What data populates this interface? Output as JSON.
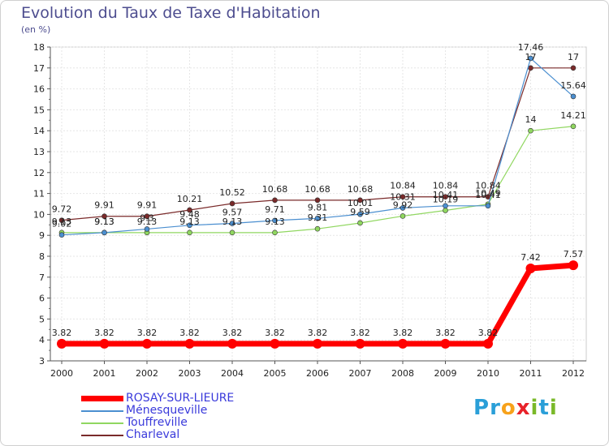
{
  "header": {
    "title": "Evolution du Taux de Taxe d'Habitation",
    "subtitle": "(en %)"
  },
  "logo": {
    "letters": [
      "P",
      "r",
      "o",
      "x",
      "i",
      "t",
      "i"
    ],
    "colors": [
      "#2a9fd8",
      "#2a9fd8",
      "#f7a21b",
      "#e8222a",
      "#7ab929",
      "#2a9fd8",
      "#7ab929"
    ]
  },
  "chart_data": {
    "type": "line",
    "title": "Evolution du Taux de Taxe d'Habitation",
    "ylabel": "(en %)",
    "xlabel": "",
    "x": [
      "2000",
      "2001",
      "2002",
      "2003",
      "2004",
      "2005",
      "2006",
      "2007",
      "2008",
      "2009",
      "2010",
      "2011",
      "2012"
    ],
    "ylim": [
      3,
      18
    ],
    "yticks": [
      "3",
      "4",
      "5",
      "6",
      "7",
      "8",
      "9",
      "10",
      "11",
      "12",
      "13",
      "14",
      "15",
      "16",
      "17",
      "18"
    ],
    "grid": true,
    "legend_position": "bottom-left",
    "series": [
      {
        "name": "ROSAY-SUR-LIEURE",
        "color": "#ff0000",
        "values": [
          3.82,
          3.82,
          3.82,
          3.82,
          3.82,
          3.82,
          3.82,
          3.82,
          3.82,
          3.82,
          3.82,
          7.42,
          7.57
        ],
        "labels": [
          "3.82",
          "3.82",
          "3.82",
          "3.82",
          "3.82",
          "3.82",
          "3.82",
          "3.82",
          "3.82",
          "3.82",
          "3.82",
          "7.42",
          "7.57"
        ]
      },
      {
        "name": "Ménesqueville",
        "color": "#4b8fd0",
        "values": [
          9.02,
          9.13,
          9.3,
          9.48,
          9.57,
          9.71,
          9.81,
          10.01,
          10.31,
          10.41,
          10.41,
          17.46,
          15.64
        ],
        "labels": [
          "9.02",
          "9.13",
          "9.3",
          "9.48",
          "9.57",
          "9.71",
          "9.81",
          "10.01",
          "10.31",
          "10.41",
          "10.41",
          "17.46",
          "15.64"
        ]
      },
      {
        "name": "Touffreville",
        "color": "#90d760",
        "values": [
          9.13,
          9.13,
          9.13,
          9.13,
          9.13,
          9.13,
          9.31,
          9.59,
          9.92,
          10.19,
          10.49,
          14,
          14.21
        ],
        "labels": [
          "9.13",
          "9.13",
          "9.13",
          "9.13",
          "9.13",
          "9.13",
          "9.31",
          "9.59",
          "9.92",
          "10.19",
          "10.49",
          "14",
          "14.21"
        ]
      },
      {
        "name": "Charleval",
        "color": "#7a2a2a",
        "values": [
          9.72,
          9.91,
          9.91,
          10.21,
          10.52,
          10.68,
          10.68,
          10.68,
          10.84,
          10.84,
          10.84,
          17,
          17
        ],
        "labels": [
          "9.72",
          "9.91",
          "9.91",
          "10.21",
          "10.52",
          "10.68",
          "10.68",
          "10.68",
          "10.84",
          "10.84",
          "10.84",
          "17",
          "17"
        ]
      }
    ]
  }
}
